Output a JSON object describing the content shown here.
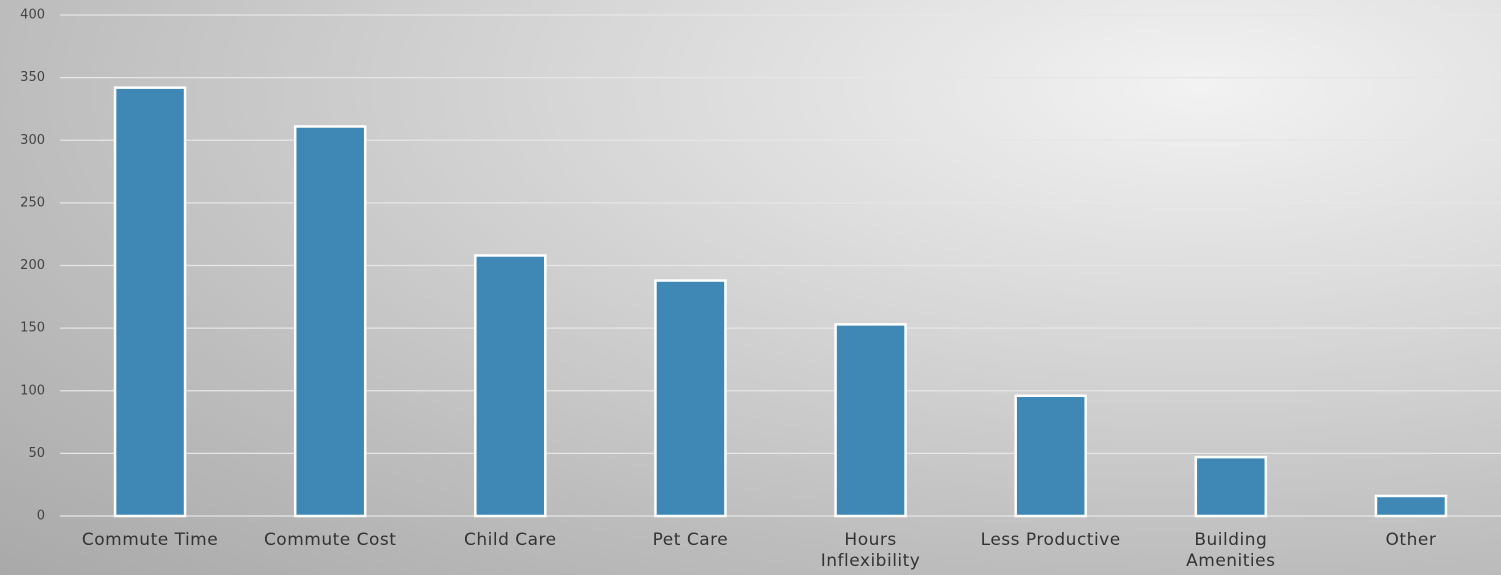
{
  "chart_data": {
    "type": "bar",
    "categories": [
      "Commute Time",
      "Commute Cost",
      "Child Care",
      "Pet Care",
      "Hours\nInflexibility",
      "Less Productive",
      "Building\nAmenities",
      "Other"
    ],
    "values": [
      342,
      311,
      208,
      188,
      153,
      96,
      47,
      16
    ],
    "color": "#3f88b5",
    "ylim": [
      0,
      400
    ],
    "yticks": [
      0,
      50,
      100,
      150,
      200,
      250,
      300,
      350,
      400
    ],
    "grid": true
  }
}
